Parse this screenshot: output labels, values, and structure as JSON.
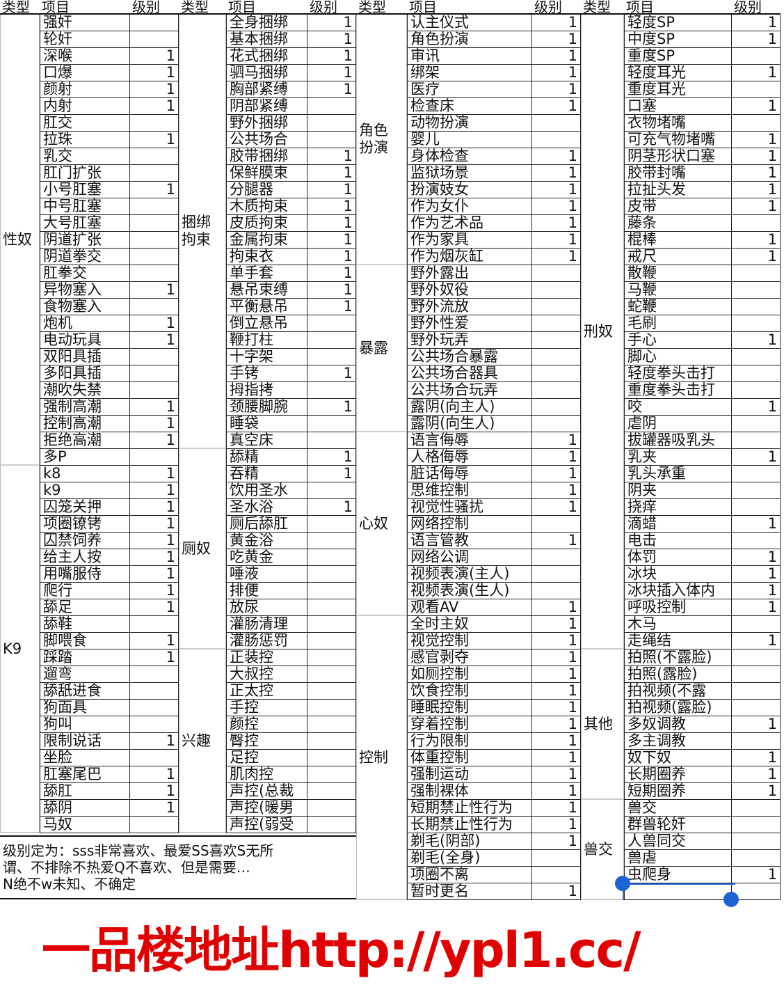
{
  "header": {
    "type": "类型",
    "item": "项目",
    "level": "级别"
  },
  "groups": [
    {
      "types": [
        {
          "label": "性奴",
          "span": 27
        },
        {
          "label": "K9",
          "span": 22
        }
      ],
      "items": [
        {
          "item": "强奸",
          "level": ""
        },
        {
          "item": "轮奸",
          "level": ""
        },
        {
          "item": "深喉",
          "level": "1"
        },
        {
          "item": "口爆",
          "level": "1"
        },
        {
          "item": "颜射",
          "level": "1"
        },
        {
          "item": "内射",
          "level": "1"
        },
        {
          "item": "肛交",
          "level": ""
        },
        {
          "item": "拉珠",
          "level": "1"
        },
        {
          "item": "乳交",
          "level": ""
        },
        {
          "item": "肛门扩张",
          "level": ""
        },
        {
          "item": "小号肛塞",
          "level": "1"
        },
        {
          "item": "中号肛塞",
          "level": ""
        },
        {
          "item": "大号肛塞",
          "level": ""
        },
        {
          "item": "阴道扩张",
          "level": ""
        },
        {
          "item": "阴道拳交",
          "level": ""
        },
        {
          "item": "肛拳交",
          "level": ""
        },
        {
          "item": "异物塞入",
          "level": "1"
        },
        {
          "item": "食物塞入",
          "level": ""
        },
        {
          "item": "炮机",
          "level": "1"
        },
        {
          "item": "电动玩具",
          "level": "1"
        },
        {
          "item": "双阳具插",
          "level": ""
        },
        {
          "item": "多阳具插",
          "level": ""
        },
        {
          "item": "潮吹失禁",
          "level": ""
        },
        {
          "item": "强制高潮",
          "level": "1"
        },
        {
          "item": "控制高潮",
          "level": "1"
        },
        {
          "item": "拒绝高潮",
          "level": "1"
        },
        {
          "item": "多P",
          "level": ""
        },
        {
          "item": "k8",
          "level": "1"
        },
        {
          "item": "k9",
          "level": "1"
        },
        {
          "item": "囚笼关押",
          "level": "1"
        },
        {
          "item": "项圈镣铐",
          "level": "1"
        },
        {
          "item": "囚禁饲养",
          "level": "1"
        },
        {
          "item": "给主人按",
          "level": "1"
        },
        {
          "item": "用嘴服侍",
          "level": "1"
        },
        {
          "item": "爬行",
          "level": "1"
        },
        {
          "item": "舔足",
          "level": "1"
        },
        {
          "item": "舔鞋",
          "level": ""
        },
        {
          "item": "脚喂食",
          "level": "1"
        },
        {
          "item": "踩踏",
          "level": "1"
        },
        {
          "item": "遛弯",
          "level": ""
        },
        {
          "item": "舔舐进食",
          "level": ""
        },
        {
          "item": "狗面具",
          "level": ""
        },
        {
          "item": "狗叫",
          "level": ""
        },
        {
          "item": "限制说话",
          "level": "1"
        },
        {
          "item": "坐脸",
          "level": ""
        },
        {
          "item": "肛塞尾巴",
          "level": "1"
        },
        {
          "item": "舔肛",
          "level": "1"
        },
        {
          "item": "舔阴",
          "level": "1"
        },
        {
          "item": "马奴",
          "level": ""
        }
      ]
    },
    {
      "types": [
        {
          "label": "捆绑拘束",
          "span": 26
        },
        {
          "label": "厕奴",
          "span": 12
        },
        {
          "label": "兴趣",
          "span": 11
        }
      ],
      "items": [
        {
          "item": "全身捆绑",
          "level": "1"
        },
        {
          "item": "基本捆绑",
          "level": "1"
        },
        {
          "item": "花式捆绑",
          "level": "1"
        },
        {
          "item": "驷马捆绑",
          "level": "1"
        },
        {
          "item": "胸部紧缚",
          "level": "1"
        },
        {
          "item": "阴部紧缚",
          "level": ""
        },
        {
          "item": "野外捆绑",
          "level": ""
        },
        {
          "item": "公共场合",
          "level": ""
        },
        {
          "item": "胶带捆绑",
          "level": "1"
        },
        {
          "item": "保鲜膜束",
          "level": "1"
        },
        {
          "item": "分腿器",
          "level": "1"
        },
        {
          "item": "木质拘束",
          "level": "1"
        },
        {
          "item": "皮质拘束",
          "level": "1"
        },
        {
          "item": "金属拘束",
          "level": "1"
        },
        {
          "item": "拘束衣",
          "level": "1"
        },
        {
          "item": "单手套",
          "level": "1"
        },
        {
          "item": "悬吊束缚",
          "level": "1"
        },
        {
          "item": "平衡悬吊",
          "level": "1"
        },
        {
          "item": "倒立悬吊",
          "level": ""
        },
        {
          "item": "鞭打柱",
          "level": ""
        },
        {
          "item": "十字架",
          "level": ""
        },
        {
          "item": "手铐",
          "level": "1"
        },
        {
          "item": "拇指拷",
          "level": ""
        },
        {
          "item": "颈腰脚腕",
          "level": "1"
        },
        {
          "item": "睡袋",
          "level": ""
        },
        {
          "item": "真空床",
          "level": ""
        },
        {
          "item": "舔精",
          "level": "1"
        },
        {
          "item": "吞精",
          "level": "1"
        },
        {
          "item": "饮用圣水",
          "level": ""
        },
        {
          "item": "圣水浴",
          "level": "1"
        },
        {
          "item": "厕后舔肛",
          "level": ""
        },
        {
          "item": "黄金浴",
          "level": ""
        },
        {
          "item": "吃黄金",
          "level": ""
        },
        {
          "item": "唾液",
          "level": ""
        },
        {
          "item": "排便",
          "level": ""
        },
        {
          "item": "放尿",
          "level": ""
        },
        {
          "item": "灌肠清理",
          "level": ""
        },
        {
          "item": "灌肠惩罚",
          "level": ""
        },
        {
          "item": "正装控",
          "level": ""
        },
        {
          "item": "大叔控",
          "level": ""
        },
        {
          "item": "正太控",
          "level": ""
        },
        {
          "item": "手控",
          "level": ""
        },
        {
          "item": "颜控",
          "level": ""
        },
        {
          "item": "臀控",
          "level": ""
        },
        {
          "item": "足控",
          "level": ""
        },
        {
          "item": "肌肉控",
          "level": ""
        },
        {
          "item": "声控(总裁",
          "level": ""
        },
        {
          "item": "声控(暖男",
          "level": ""
        },
        {
          "item": "声控(弱受",
          "level": ""
        }
      ]
    },
    {
      "types": [
        {
          "label": "角色扮演",
          "span": 15
        },
        {
          "label": "暴露",
          "span": 10
        },
        {
          "label": "心奴",
          "span": 11
        },
        {
          "label": "控制",
          "span": 17
        }
      ],
      "items": [
        {
          "item": "认主仪式",
          "level": "1"
        },
        {
          "item": "角色扮演",
          "level": "1"
        },
        {
          "item": "审讯",
          "level": "1"
        },
        {
          "item": "绑架",
          "level": "1"
        },
        {
          "item": "医疗",
          "level": "1"
        },
        {
          "item": "检查床",
          "level": "1"
        },
        {
          "item": "动物扮演",
          "level": ""
        },
        {
          "item": "婴儿",
          "level": ""
        },
        {
          "item": "身体检查",
          "level": "1"
        },
        {
          "item": "监狱场景",
          "level": "1"
        },
        {
          "item": "扮演妓女",
          "level": "1"
        },
        {
          "item": "作为女仆",
          "level": "1"
        },
        {
          "item": "作为艺术品",
          "level": "1"
        },
        {
          "item": "作为家具",
          "level": "1"
        },
        {
          "item": "作为烟灰缸",
          "level": "1"
        },
        {
          "item": "野外露出",
          "level": ""
        },
        {
          "item": "野外奴役",
          "level": ""
        },
        {
          "item": "野外流放",
          "level": ""
        },
        {
          "item": "野外性爱",
          "level": ""
        },
        {
          "item": "野外玩弄",
          "level": ""
        },
        {
          "item": "公共场合暴露",
          "level": ""
        },
        {
          "item": "公共场合器具",
          "level": ""
        },
        {
          "item": "公共场合玩弄",
          "level": ""
        },
        {
          "item": "露阴(向主人)",
          "level": ""
        },
        {
          "item": "露阴(向生人)",
          "level": ""
        },
        {
          "item": "语言侮辱",
          "level": "1"
        },
        {
          "item": "人格侮辱",
          "level": "1"
        },
        {
          "item": "脏话侮辱",
          "level": "1"
        },
        {
          "item": "思维控制",
          "level": "1"
        },
        {
          "item": "视觉性骚扰",
          "level": "1"
        },
        {
          "item": "网络控制",
          "level": ""
        },
        {
          "item": "语言管教",
          "level": "1"
        },
        {
          "item": "网络公调",
          "level": ""
        },
        {
          "item": "视频表演(主人)",
          "level": ""
        },
        {
          "item": "视频表演(生人)",
          "level": ""
        },
        {
          "item": "观看AV",
          "level": "1"
        },
        {
          "item": "全时主奴",
          "level": "1"
        },
        {
          "item": "视觉控制",
          "level": "1"
        },
        {
          "item": "感官剥夺",
          "level": "1"
        },
        {
          "item": "如厕控制",
          "level": "1"
        },
        {
          "item": "饮食控制",
          "level": "1"
        },
        {
          "item": "睡眠控制",
          "level": "1"
        },
        {
          "item": "穿着控制",
          "level": "1"
        },
        {
          "item": "行为限制",
          "level": "1"
        },
        {
          "item": "体重控制",
          "level": "1"
        },
        {
          "item": "强制运动",
          "level": "1"
        },
        {
          "item": "强制裸体",
          "level": "1"
        },
        {
          "item": "短期禁止性行为",
          "level": "1"
        },
        {
          "item": "长期禁止性行为",
          "level": "1"
        },
        {
          "item": "剃毛(阴部)",
          "level": "1"
        },
        {
          "item": "剃毛(全身)",
          "level": ""
        },
        {
          "item": "项圈不离",
          "level": ""
        },
        {
          "item": "暂时更名",
          "level": "1"
        }
      ]
    },
    {
      "types": [
        {
          "label": "刑奴",
          "span": 38
        },
        {
          "label": "其他",
          "span": 9
        },
        {
          "label": "兽交",
          "span": 6
        }
      ],
      "items": [
        {
          "item": "轻度SP",
          "level": "1"
        },
        {
          "item": "中度SP",
          "level": "1"
        },
        {
          "item": "重度SP",
          "level": ""
        },
        {
          "item": "轻度耳光",
          "level": "1"
        },
        {
          "item": "重度耳光",
          "level": ""
        },
        {
          "item": "口塞",
          "level": "1"
        },
        {
          "item": "衣物堵嘴",
          "level": ""
        },
        {
          "item": "可充气物堵嘴",
          "level": "1"
        },
        {
          "item": "阴茎形状口塞",
          "level": "1"
        },
        {
          "item": "胶带封嘴",
          "level": "1"
        },
        {
          "item": "拉扯头发",
          "level": "1"
        },
        {
          "item": "皮带",
          "level": "1"
        },
        {
          "item": "藤条",
          "level": ""
        },
        {
          "item": "棍棒",
          "level": "1"
        },
        {
          "item": "戒尺",
          "level": "1"
        },
        {
          "item": "散鞭",
          "level": ""
        },
        {
          "item": "马鞭",
          "level": ""
        },
        {
          "item": "蛇鞭",
          "level": ""
        },
        {
          "item": "毛刷",
          "level": ""
        },
        {
          "item": "手心",
          "level": "1"
        },
        {
          "item": "脚心",
          "level": ""
        },
        {
          "item": "轻度拳头击打",
          "level": ""
        },
        {
          "item": "重度拳头击打",
          "level": ""
        },
        {
          "item": "咬",
          "level": "1"
        },
        {
          "item": "虐阴",
          "level": ""
        },
        {
          "item": "拔罐器吸乳头",
          "level": ""
        },
        {
          "item": "乳夹",
          "level": "1"
        },
        {
          "item": "乳头承重",
          "level": ""
        },
        {
          "item": "阴夹",
          "level": ""
        },
        {
          "item": "挠痒",
          "level": ""
        },
        {
          "item": "滴蜡",
          "level": "1"
        },
        {
          "item": "电击",
          "level": ""
        },
        {
          "item": "体罚",
          "level": "1"
        },
        {
          "item": "冰块",
          "level": "1"
        },
        {
          "item": "冰块插入体内",
          "level": "1"
        },
        {
          "item": "呼吸控制",
          "level": "1"
        },
        {
          "item": "木马",
          "level": ""
        },
        {
          "item": "走绳结",
          "level": "1"
        },
        {
          "item": "拍照(不露脸)",
          "level": ""
        },
        {
          "item": "拍照(露脸)",
          "level": ""
        },
        {
          "item": "拍视频(不露",
          "level": ""
        },
        {
          "item": "拍视频(露脸)",
          "level": ""
        },
        {
          "item": "多奴调教",
          "level": "1"
        },
        {
          "item": "多主调教",
          "level": ""
        },
        {
          "item": "奴下奴",
          "level": "1"
        },
        {
          "item": "长期圈养",
          "level": "1"
        },
        {
          "item": "短期圈养",
          "level": "1"
        },
        {
          "item": "兽交",
          "level": ""
        },
        {
          "item": "群兽轮奸",
          "level": ""
        },
        {
          "item": "人兽同交",
          "level": ""
        },
        {
          "item": "兽虐",
          "level": ""
        },
        {
          "item": "虫爬身",
          "level": "1"
        },
        {
          "item": "",
          "level": ""
        }
      ]
    }
  ],
  "note": {
    "line1": "级别定为：sss非常喜欢、最爱SS喜欢S无所",
    "line2": "谓、不排除不热爱Q不喜欢、但是需要…",
    "line3": "N绝不w未知、不确定"
  },
  "watermark": "一品楼地址http://ypl1.cc/",
  "colors": {
    "watermark": "#e00000",
    "selection": "#1e63d6"
  }
}
